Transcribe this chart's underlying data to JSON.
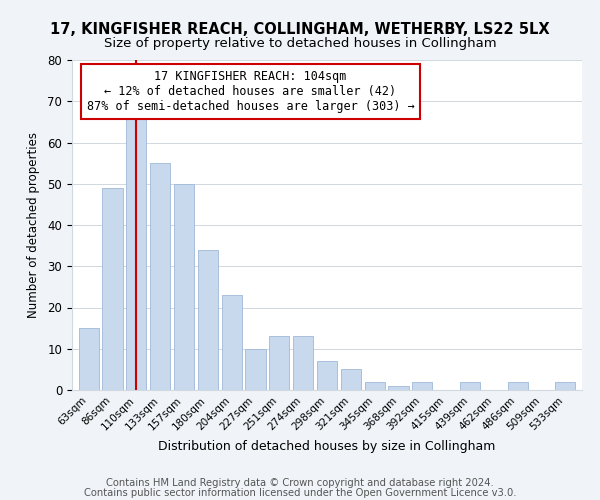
{
  "title": "17, KINGFISHER REACH, COLLINGHAM, WETHERBY, LS22 5LX",
  "subtitle": "Size of property relative to detached houses in Collingham",
  "xlabel": "Distribution of detached houses by size in Collingham",
  "ylabel": "Number of detached properties",
  "bar_labels": [
    "63sqm",
    "86sqm",
    "110sqm",
    "133sqm",
    "157sqm",
    "180sqm",
    "204sqm",
    "227sqm",
    "251sqm",
    "274sqm",
    "298sqm",
    "321sqm",
    "345sqm",
    "368sqm",
    "392sqm",
    "415sqm",
    "439sqm",
    "462sqm",
    "486sqm",
    "509sqm",
    "533sqm"
  ],
  "bar_values": [
    15,
    49,
    66,
    55,
    50,
    34,
    23,
    10,
    13,
    13,
    7,
    5,
    2,
    1,
    2,
    0,
    2,
    0,
    2,
    0,
    2
  ],
  "bar_color": "#c8d9ed",
  "bar_edge_color": "#a0b8d8",
  "vline_x": 2,
  "vline_color": "#cc0000",
  "annotation_line1": "17 KINGFISHER REACH: 104sqm",
  "annotation_line2": "← 12% of detached houses are smaller (42)",
  "annotation_line3": "87% of semi-detached houses are larger (303) →",
  "annotation_box_color": "#ffffff",
  "annotation_box_edge": "#cc0000",
  "ylim": [
    0,
    80
  ],
  "yticks": [
    0,
    10,
    20,
    30,
    40,
    50,
    60,
    70,
    80
  ],
  "footer_line1": "Contains HM Land Registry data © Crown copyright and database right 2024.",
  "footer_line2": "Contains public sector information licensed under the Open Government Licence v3.0.",
  "bg_color": "#f0f4f8",
  "plot_bg_color": "#ffffff",
  "title_fontsize": 10.5,
  "subtitle_fontsize": 9.5,
  "footer_fontsize": 7.2,
  "grid_color": "#d0d8e0"
}
